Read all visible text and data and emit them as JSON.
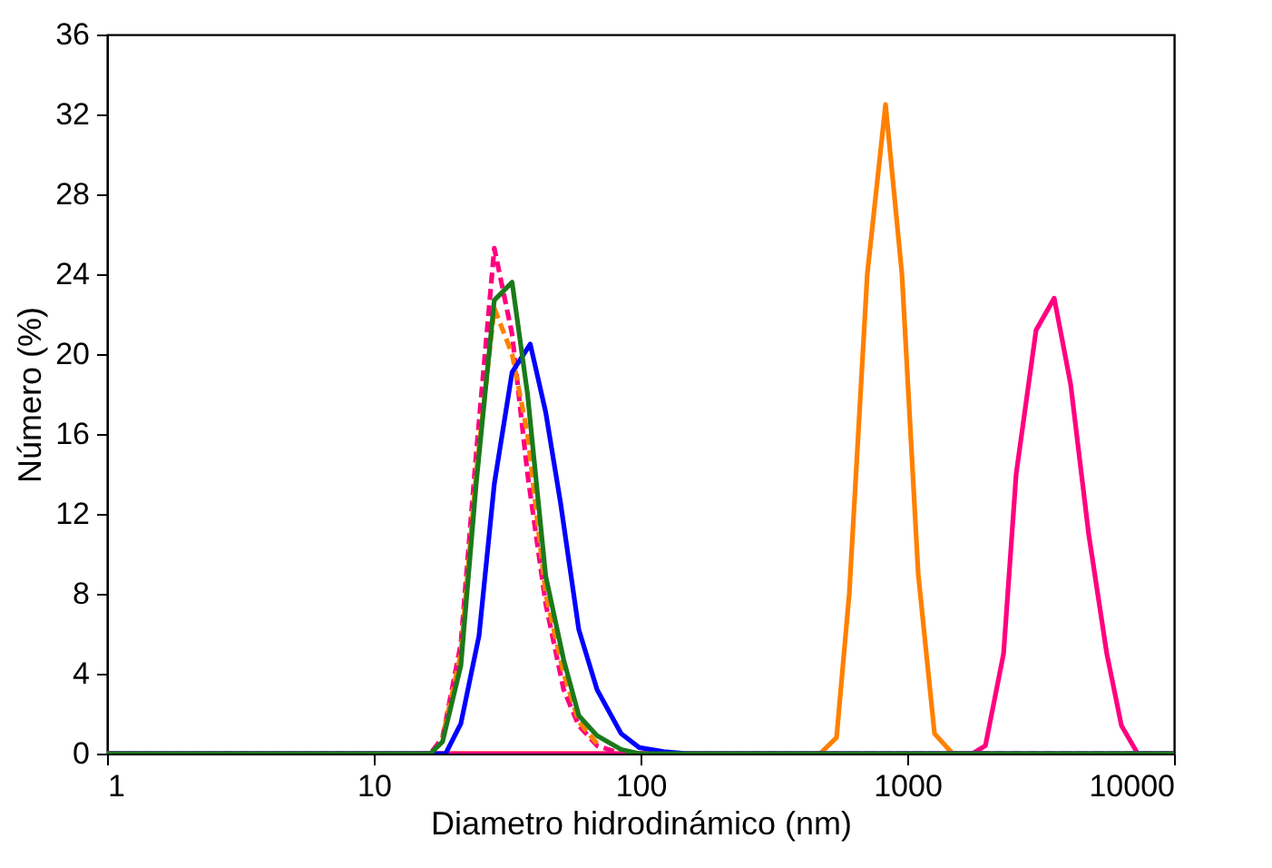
{
  "chart_data": {
    "type": "line",
    "xlabel": "Diametro hidrodinámico (nm)",
    "ylabel": "Número (%)",
    "log": "x",
    "xlim": [
      1,
      10000
    ],
    "xticks": [
      1,
      10,
      100,
      1000,
      10000
    ],
    "ylim": [
      0,
      36
    ],
    "yticks": [
      0,
      4,
      8,
      12,
      16,
      20,
      24,
      28,
      32,
      36
    ],
    "grid": false,
    "marker": "none",
    "series": [
      {
        "color": "#ff8000",
        "line_style": "solid",
        "x": [
          1,
          471,
          543,
          606,
          708,
          829,
          955,
          1099,
          1265,
          1479,
          10000
        ],
        "values": [
          0,
          0,
          0.8,
          8,
          24,
          32.5,
          24,
          9,
          1,
          0,
          0
        ]
      },
      {
        "color": "#ff0080",
        "line_style": "solid",
        "x": [
          1,
          1758,
          1963,
          2296,
          2560,
          3040,
          3556,
          4096,
          4786,
          5598,
          6353,
          7311,
          10000
        ],
        "values": [
          0,
          0,
          0.4,
          5,
          14,
          21.2,
          22.8,
          18.5,
          11,
          5,
          1.4,
          0,
          0
        ]
      },
      {
        "color": "#ff0080",
        "line_style": "dashed",
        "x": [
          1,
          16.3,
          18.1,
          21.2,
          24.2,
          28.3,
          33.0,
          37.7,
          44.1,
          51.5,
          58.7,
          68.7,
          84.6,
          10000
        ],
        "values": [
          0,
          0,
          0.8,
          5.5,
          15,
          25.3,
          21,
          14,
          7.5,
          3.2,
          1.4,
          0.4,
          0,
          0
        ]
      },
      {
        "color": "#ff8000",
        "line_style": "dashed",
        "x": [
          18.1,
          21.2,
          24.2,
          28.3,
          33.0,
          37.7,
          44.1,
          51.5,
          58.7,
          68.7
        ],
        "values": [
          0.8,
          5,
          14,
          22.3,
          20,
          16,
          8,
          4,
          1.6,
          0.5
        ]
      },
      {
        "color": "#0000ff",
        "line_style": "solid",
        "x": [
          1,
          18.6,
          21.2,
          24.8,
          28.3,
          33.0,
          38.6,
          44.1,
          50.2,
          58.7,
          68.7,
          84.6,
          98.9,
          122,
          150,
          10000
        ],
        "values": [
          0,
          0,
          1.5,
          5.9,
          13.5,
          19.1,
          20.5,
          17.1,
          12.5,
          6.2,
          3.2,
          1.0,
          0.3,
          0.1,
          0,
          0
        ]
      },
      {
        "color": "#1a7a1a",
        "line_style": "solid",
        "x": [
          1,
          16.3,
          18.1,
          21.2,
          24.2,
          28.3,
          33.0,
          37.7,
          44.1,
          51.5,
          58.7,
          68.7,
          84.6,
          98.9,
          10000
        ],
        "values": [
          0,
          0,
          0.6,
          4.4,
          13.5,
          22.7,
          23.6,
          18,
          8.9,
          4.7,
          1.9,
          0.9,
          0.2,
          0,
          0
        ]
      }
    ]
  }
}
